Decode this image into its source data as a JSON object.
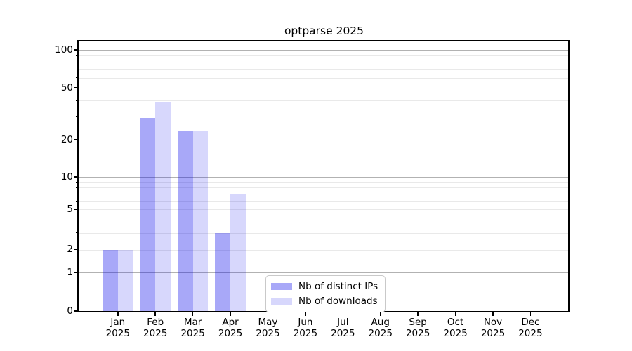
{
  "chart_data": {
    "type": "bar",
    "title": "optparse 2025",
    "categories": [
      "Jan",
      "Feb",
      "Mar",
      "Apr",
      "May",
      "Jun",
      "Jul",
      "Aug",
      "Sep",
      "Oct",
      "Nov",
      "Dec"
    ],
    "year_label": "2025",
    "series": [
      {
        "name": "Nb of distinct IPs",
        "color": "rgba(0,0,235,0.34)",
        "values": [
          2,
          29,
          23,
          3,
          0,
          0,
          0,
          0,
          0,
          0,
          0,
          0
        ]
      },
      {
        "name": "Nb of downloads",
        "color": "rgba(0,0,235,0.155)",
        "values": [
          2,
          39,
          23,
          7,
          0,
          0,
          0,
          0,
          0,
          0,
          0,
          0
        ]
      }
    ],
    "xlabel": "",
    "ylabel": "",
    "y_axis": {
      "scale": "symlog",
      "ylim": [
        0,
        130
      ],
      "ticks_labeled": [
        100,
        50,
        20,
        10,
        5,
        2,
        1,
        0
      ],
      "ticks_minor": [
        3,
        4,
        6,
        7,
        8,
        9,
        30,
        40,
        60,
        70,
        80,
        90
      ]
    },
    "grid": true,
    "legend": {
      "position": "lower-center",
      "labels": [
        "Nb of distinct IPs",
        "Nb of downloads"
      ]
    },
    "style": {
      "major_grid_color": "#b2b2b2",
      "minor_grid_color": "#e9e9e9",
      "spine_color": "#000000",
      "background": "#ffffff"
    }
  }
}
